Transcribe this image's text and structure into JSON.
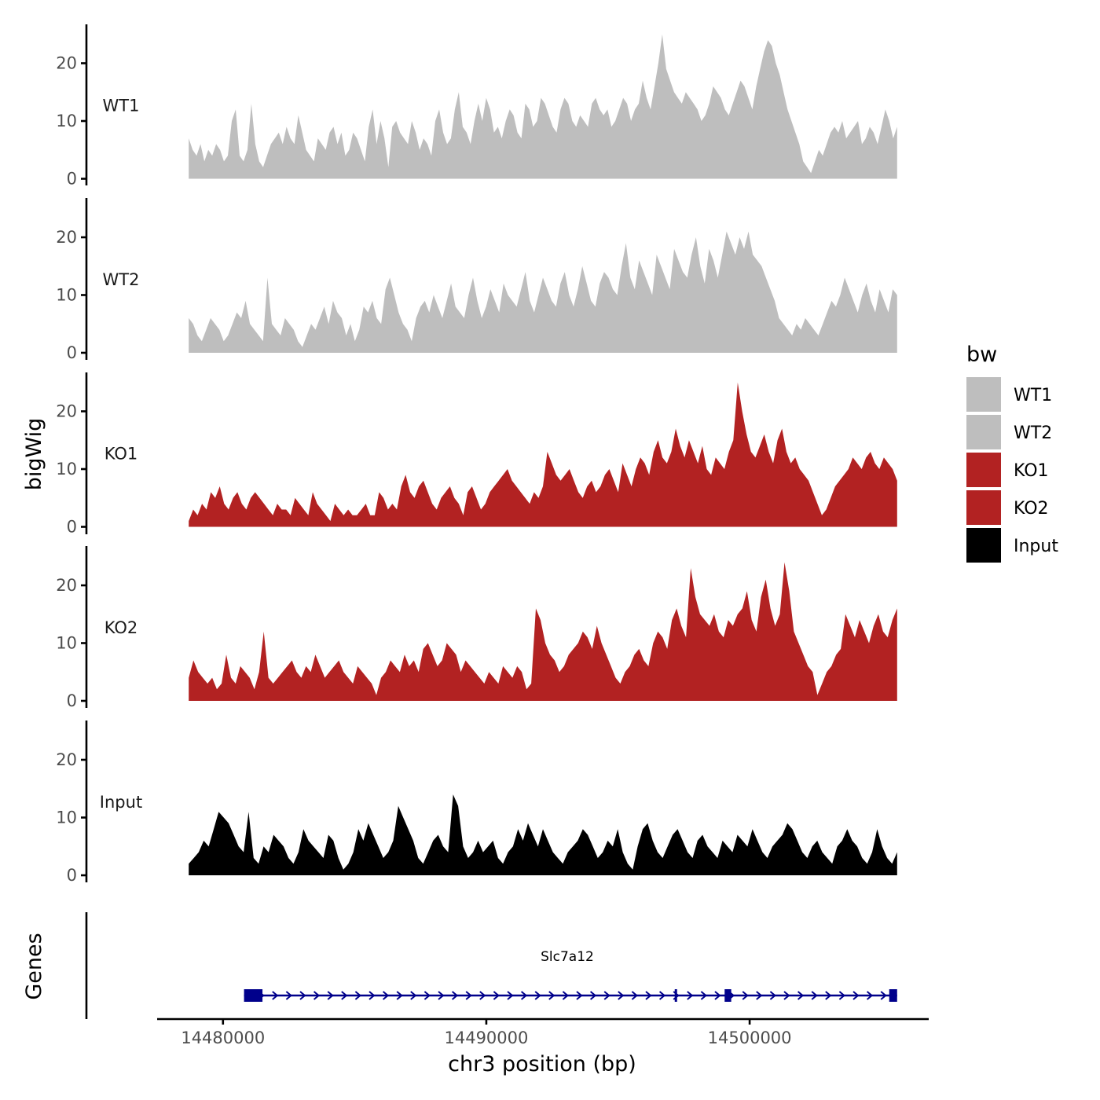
{
  "chart_data": {
    "type": "area",
    "xlabel": "chr3 position (bp)",
    "ylabel": "bigWig",
    "gene_panel_label": "Genes",
    "xlim": [
      14477500,
      14506800
    ],
    "data_range": [
      14478700,
      14505600
    ],
    "x_ticks": [
      14480000,
      14490000,
      14500000
    ],
    "x_tick_labels": [
      "14480000",
      "14490000",
      "14500000"
    ],
    "ylim": [
      0,
      27
    ],
    "y_ticks": [
      0,
      10,
      20
    ],
    "y_tick_labels": [
      "0",
      "10",
      "20"
    ],
    "legend": {
      "title": "bw",
      "entries": [
        {
          "label": "WT1",
          "color": "#bebebe"
        },
        {
          "label": "WT2",
          "color": "#bebebe"
        },
        {
          "label": "KO1",
          "color": "#b22222"
        },
        {
          "label": "KO2",
          "color": "#b22222"
        },
        {
          "label": "Input",
          "color": "#000000"
        }
      ]
    },
    "series": [
      {
        "name": "WT1",
        "color": "#bebebe",
        "values": [
          7,
          5,
          4,
          6,
          3,
          5,
          4,
          6,
          5,
          3,
          4,
          10,
          12,
          4,
          3,
          5,
          13,
          6,
          3,
          2,
          4,
          6,
          7,
          8,
          6,
          9,
          7,
          6,
          11,
          8,
          5,
          4,
          3,
          7,
          6,
          5,
          8,
          9,
          6,
          8,
          4,
          5,
          8,
          7,
          5,
          3,
          9,
          12,
          6,
          10,
          7,
          2,
          9,
          10,
          8,
          7,
          6,
          10,
          8,
          5,
          7,
          6,
          4,
          10,
          12,
          8,
          6,
          7,
          12,
          15,
          9,
          8,
          6,
          10,
          13,
          10,
          14,
          12,
          8,
          9,
          7,
          10,
          12,
          11,
          8,
          7,
          13,
          12,
          9,
          10,
          14,
          13,
          11,
          9,
          8,
          12,
          14,
          13,
          10,
          9,
          11,
          10,
          9,
          13,
          14,
          12,
          11,
          12,
          9,
          10,
          12,
          14,
          13,
          10,
          12,
          13,
          17,
          14,
          12,
          16,
          20,
          25,
          19,
          17,
          15,
          14,
          13,
          15,
          14,
          13,
          12,
          10,
          11,
          13,
          16,
          15,
          14,
          12,
          11,
          13,
          15,
          17,
          16,
          14,
          12,
          16,
          19,
          22,
          24,
          23,
          20,
          18,
          15,
          12,
          10,
          8,
          6,
          3,
          2,
          1,
          3,
          5,
          4,
          6,
          8,
          9,
          8,
          10,
          7,
          8,
          9,
          10,
          6,
          7,
          9,
          8,
          6,
          9,
          12,
          10,
          7,
          9
        ]
      },
      {
        "name": "WT2",
        "color": "#bebebe",
        "values": [
          6,
          5,
          3,
          2,
          4,
          6,
          5,
          4,
          2,
          3,
          5,
          7,
          6,
          9,
          5,
          4,
          3,
          2,
          13,
          5,
          4,
          3,
          6,
          5,
          4,
          2,
          1,
          3,
          5,
          4,
          6,
          8,
          5,
          9,
          7,
          6,
          3,
          5,
          2,
          4,
          8,
          7,
          9,
          6,
          5,
          11,
          13,
          10,
          7,
          5,
          4,
          2,
          6,
          8,
          9,
          7,
          10,
          8,
          6,
          9,
          12,
          8,
          7,
          6,
          10,
          13,
          9,
          6,
          8,
          11,
          9,
          7,
          12,
          10,
          9,
          8,
          11,
          14,
          9,
          7,
          10,
          13,
          11,
          9,
          8,
          12,
          14,
          10,
          8,
          11,
          15,
          12,
          9,
          8,
          12,
          14,
          13,
          11,
          10,
          15,
          19,
          13,
          11,
          16,
          14,
          12,
          10,
          17,
          15,
          13,
          11,
          18,
          16,
          14,
          13,
          17,
          20,
          15,
          12,
          18,
          16,
          13,
          17,
          21,
          19,
          17,
          20,
          18,
          21,
          17,
          16,
          15,
          13,
          11,
          9,
          6,
          5,
          4,
          3,
          5,
          4,
          6,
          5,
          4,
          3,
          5,
          7,
          9,
          8,
          10,
          13,
          11,
          9,
          7,
          10,
          12,
          9,
          7,
          11,
          9,
          7,
          11,
          10
        ]
      },
      {
        "name": "KO1",
        "color": "#b22222",
        "values": [
          1,
          3,
          2,
          4,
          3,
          6,
          5,
          7,
          4,
          3,
          5,
          6,
          4,
          3,
          5,
          6,
          5,
          4,
          3,
          2,
          4,
          3,
          3,
          2,
          5,
          4,
          3,
          2,
          6,
          4,
          3,
          2,
          1,
          4,
          3,
          2,
          3,
          2,
          2,
          3,
          4,
          2,
          2,
          6,
          5,
          3,
          4,
          3,
          7,
          9,
          6,
          5,
          7,
          8,
          6,
          4,
          3,
          5,
          6,
          7,
          5,
          4,
          2,
          6,
          7,
          5,
          3,
          4,
          6,
          7,
          8,
          9,
          10,
          8,
          7,
          6,
          5,
          4,
          6,
          5,
          7,
          13,
          11,
          9,
          8,
          9,
          10,
          8,
          6,
          5,
          7,
          8,
          6,
          7,
          9,
          10,
          8,
          6,
          11,
          9,
          7,
          10,
          12,
          11,
          9,
          13,
          15,
          12,
          11,
          13,
          17,
          14,
          12,
          15,
          13,
          11,
          14,
          10,
          9,
          12,
          11,
          10,
          13,
          15,
          25,
          20,
          16,
          13,
          12,
          14,
          16,
          13,
          11,
          15,
          17,
          13,
          11,
          12,
          10,
          9,
          8,
          6,
          4,
          2,
          3,
          5,
          7,
          8,
          9,
          10,
          12,
          11,
          10,
          12,
          13,
          11,
          10,
          12,
          11,
          10,
          8
        ]
      },
      {
        "name": "KO2",
        "color": "#b22222",
        "values": [
          4,
          7,
          5,
          4,
          3,
          4,
          2,
          3,
          8,
          4,
          3,
          6,
          5,
          4,
          2,
          5,
          12,
          4,
          3,
          4,
          5,
          6,
          7,
          5,
          4,
          6,
          5,
          8,
          6,
          4,
          5,
          6,
          7,
          5,
          4,
          3,
          6,
          5,
          4,
          3,
          1,
          4,
          5,
          7,
          6,
          5,
          8,
          6,
          7,
          5,
          9,
          10,
          8,
          6,
          7,
          10,
          9,
          8,
          5,
          7,
          6,
          5,
          4,
          3,
          5,
          4,
          3,
          6,
          5,
          4,
          6,
          5,
          2,
          3,
          16,
          14,
          10,
          8,
          7,
          5,
          6,
          8,
          9,
          10,
          12,
          11,
          9,
          13,
          10,
          8,
          6,
          4,
          3,
          5,
          6,
          8,
          9,
          7,
          6,
          10,
          12,
          11,
          9,
          14,
          16,
          13,
          11,
          23,
          18,
          15,
          14,
          13,
          15,
          12,
          11,
          14,
          13,
          15,
          16,
          19,
          14,
          12,
          18,
          21,
          16,
          13,
          15,
          24,
          19,
          12,
          10,
          8,
          6,
          5,
          1,
          3,
          5,
          6,
          8,
          9,
          15,
          13,
          11,
          14,
          12,
          10,
          13,
          15,
          12,
          11,
          14,
          16
        ]
      },
      {
        "name": "Input",
        "color": "#000000",
        "values": [
          2,
          3,
          4,
          6,
          5,
          8,
          11,
          10,
          9,
          7,
          5,
          4,
          11,
          3,
          2,
          5,
          4,
          7,
          6,
          5,
          3,
          2,
          4,
          8,
          6,
          5,
          4,
          3,
          7,
          6,
          3,
          1,
          2,
          4,
          8,
          6,
          9,
          7,
          5,
          3,
          4,
          6,
          12,
          10,
          8,
          6,
          3,
          2,
          4,
          6,
          7,
          5,
          4,
          14,
          12,
          5,
          3,
          4,
          6,
          4,
          5,
          6,
          3,
          2,
          4,
          5,
          8,
          6,
          9,
          7,
          5,
          8,
          6,
          4,
          3,
          2,
          4,
          5,
          6,
          8,
          7,
          5,
          3,
          4,
          6,
          5,
          8,
          4,
          2,
          1,
          5,
          8,
          9,
          6,
          4,
          3,
          5,
          7,
          8,
          6,
          4,
          3,
          6,
          7,
          5,
          4,
          3,
          6,
          5,
          4,
          7,
          6,
          5,
          8,
          6,
          4,
          3,
          5,
          6,
          7,
          9,
          8,
          6,
          4,
          3,
          5,
          6,
          4,
          3,
          2,
          5,
          6,
          8,
          6,
          5,
          3,
          2,
          4,
          8,
          5,
          3,
          2,
          4
        ]
      }
    ],
    "gene": {
      "name": "Slc7a12",
      "color": "#00008b",
      "start": 14480800,
      "end": 14505600,
      "strand": "+",
      "exons": [
        [
          14480800,
          14481500
        ],
        [
          14499050,
          14499300
        ],
        [
          14505300,
          14505600
        ]
      ],
      "marker_positions": [
        14497200
      ]
    }
  }
}
